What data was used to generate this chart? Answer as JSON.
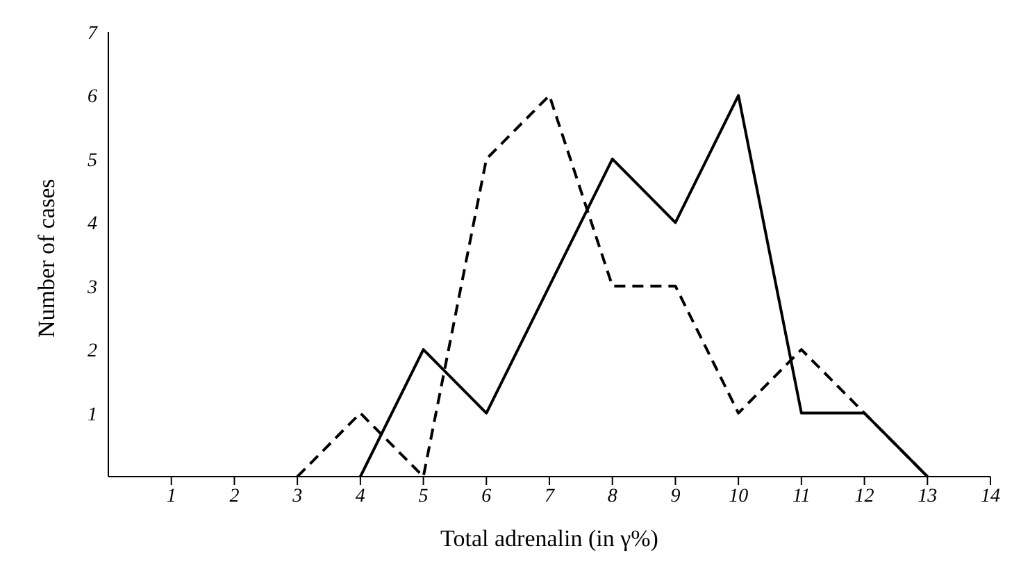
{
  "chart_data": {
    "type": "line",
    "xlabel": "Total adrenalin (in γ%)",
    "ylabel": "Number of cases",
    "xlim": [
      0,
      14
    ],
    "xticks": [
      1,
      2,
      3,
      4,
      5,
      6,
      7,
      8,
      9,
      10,
      11,
      12,
      13,
      14
    ],
    "ylim": [
      0,
      7
    ],
    "yticks": [
      1,
      2,
      3,
      4,
      5,
      6,
      7
    ],
    "grid": false,
    "legend": false,
    "marker": "none",
    "series": [
      {
        "color": "#000000",
        "line_style": "solid",
        "x": [
          4,
          5,
          6,
          7,
          8,
          9,
          10,
          11,
          12,
          13
        ],
        "values": [
          0,
          2,
          1,
          3,
          5,
          4,
          6,
          1,
          1,
          0
        ]
      },
      {
        "color": "#000000",
        "line_style": "dashed",
        "x": [
          3,
          4,
          5,
          6,
          7,
          8,
          9,
          10,
          11,
          12,
          13
        ],
        "values": [
          0,
          1,
          0,
          5,
          6,
          3,
          3,
          1,
          2,
          1,
          0
        ]
      }
    ]
  }
}
